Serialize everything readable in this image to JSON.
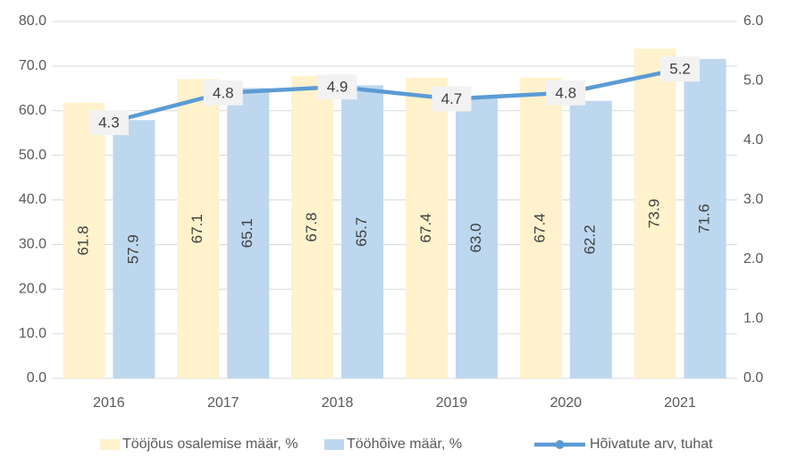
{
  "chart_data": {
    "type": "bar",
    "categories": [
      "2016",
      "2017",
      "2018",
      "2019",
      "2020",
      "2021"
    ],
    "series": [
      {
        "name": "Tööjõus osalemise määr, %",
        "color": "#fff2cc",
        "values": [
          61.8,
          67.1,
          67.8,
          67.4,
          67.4,
          73.9
        ]
      },
      {
        "name": "Tööhõive määr, %",
        "color": "#bdd7ee",
        "values": [
          57.9,
          65.1,
          65.7,
          63.0,
          62.2,
          71.6
        ],
        "value_labels": [
          "57.9",
          "65.1",
          "65.7",
          "63.0",
          "62.2",
          "71.6"
        ]
      },
      {
        "name": "Hõivatute arv, tuhat",
        "color": "#5b9bd5",
        "type": "line",
        "axis": "y2",
        "values": [
          4.3,
          4.8,
          4.9,
          4.7,
          4.8,
          5.2
        ]
      }
    ],
    "ylim": [
      0,
      80
    ],
    "yticks": [
      {
        "value": 0,
        "label": "0.0"
      },
      {
        "value": 10,
        "label": "10.0"
      },
      {
        "value": 20,
        "label": "20.0"
      },
      {
        "value": 30,
        "label": "30.0"
      },
      {
        "value": 40,
        "label": "40.0"
      },
      {
        "value": 50,
        "label": "50.0"
      },
      {
        "value": 60,
        "label": "60.0"
      },
      {
        "value": 70,
        "label": "70.0"
      },
      {
        "value": 80,
        "label": "80.0"
      }
    ],
    "y2lim": [
      0,
      6
    ],
    "y2ticks": [
      {
        "value": 0,
        "label": "0.0"
      },
      {
        "value": 1,
        "label": "1.0"
      },
      {
        "value": 2,
        "label": "2.0"
      },
      {
        "value": 3,
        "label": "3.0"
      },
      {
        "value": 4,
        "label": "4.0"
      },
      {
        "value": 5,
        "label": "5.0"
      },
      {
        "value": 6,
        "label": "6.0"
      }
    ],
    "grid": true,
    "legend": "bottom"
  }
}
